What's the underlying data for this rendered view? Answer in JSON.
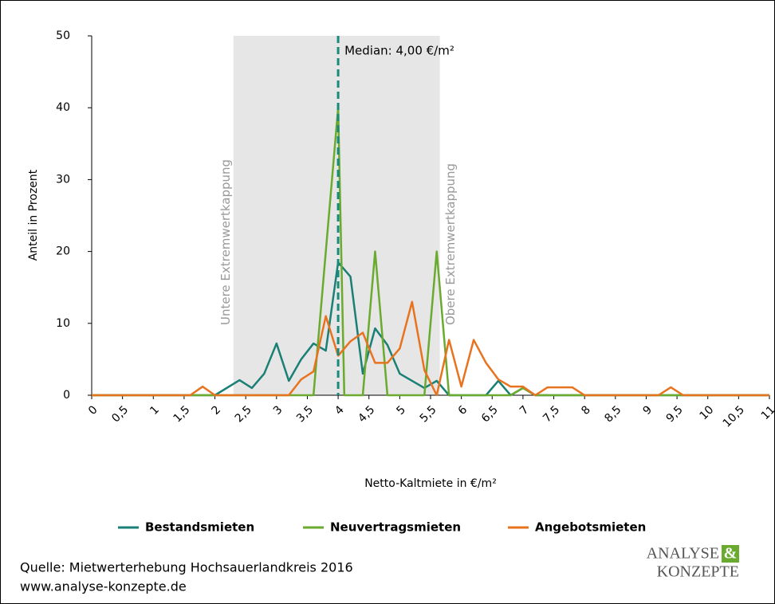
{
  "chart_data": {
    "type": "line",
    "xlabel": "Netto-Kaltmiete in €/m²",
    "ylabel": "Anteil in Prozent",
    "xlim": [
      0,
      11
    ],
    "ylim": [
      0,
      50
    ],
    "xticks": [
      0,
      {
        "value": 0.5,
        "label": "0,5"
      },
      1,
      {
        "value": 1.5,
        "label": "1,5"
      },
      2,
      {
        "value": 2.5,
        "label": "2,5"
      },
      3,
      {
        "value": 3.5,
        "label": "3,5"
      },
      4,
      {
        "value": 4.5,
        "label": "4,5"
      },
      5,
      {
        "value": 5.5,
        "label": "5,5"
      },
      6,
      {
        "value": 6.5,
        "label": "6,5"
      },
      7,
      {
        "value": 7.5,
        "label": "7,5"
      },
      8,
      {
        "value": 8.5,
        "label": "8,5"
      },
      9,
      {
        "value": 9.5,
        "label": "9,5"
      },
      10,
      {
        "value": 10.5,
        "label": "10,5"
      },
      11
    ],
    "yticks": [
      0,
      10,
      20,
      30,
      40,
      50
    ],
    "grid": false,
    "legend": "bottom",
    "band": {
      "from": 2.3,
      "to": 5.65,
      "color": "#e6e6e6"
    },
    "annotations": [
      {
        "text": "Untere Extremwertkappung",
        "x": 2.3,
        "side": "left"
      },
      {
        "text": "Obere Extremwertkappung",
        "x": 5.65,
        "side": "right"
      }
    ],
    "median": {
      "value": 4,
      "label": "Median: 4,00 €/m²",
      "color": "#1a8a7a"
    },
    "series": [
      {
        "name": "Bestandsmieten",
        "color": "#1a8075",
        "x": [
          0,
          2.0,
          2.4,
          2.6,
          2.8,
          3.0,
          3.2,
          3.4,
          3.6,
          3.8,
          4.0,
          4.2,
          4.4,
          4.6,
          4.8,
          5.0,
          5.4,
          5.6,
          5.8,
          6.4,
          6.6,
          6.8,
          7.0,
          7.2,
          11
        ],
        "values": [
          0,
          0,
          2.1,
          1,
          3,
          7.2,
          2,
          5,
          7.2,
          6.2,
          18.5,
          16.5,
          3,
          9.3,
          7,
          3,
          1,
          2,
          0,
          0,
          2,
          0,
          1,
          0,
          0
        ]
      },
      {
        "name": "Neuvertragsmieten",
        "color": "#6aaa2e",
        "x": [
          0,
          3.6,
          4.0,
          4.1,
          4.4,
          4.6,
          4.8,
          5.4,
          5.6,
          5.8,
          6.8,
          7.0,
          7.2,
          11
        ],
        "values": [
          0,
          0,
          40,
          0,
          0,
          20,
          0,
          0,
          20,
          0,
          0,
          1,
          0,
          0
        ]
      },
      {
        "name": "Angebotsmieten",
        "color": "#e8731f",
        "x": [
          0,
          1.6,
          1.8,
          2.0,
          3.2,
          3.4,
          3.6,
          3.8,
          4.0,
          4.2,
          4.4,
          4.6,
          4.8,
          5.0,
          5.2,
          5.4,
          5.6,
          5.8,
          6.0,
          6.2,
          6.4,
          6.6,
          6.8,
          7.0,
          7.2,
          7.4,
          7.8,
          8.0,
          9.2,
          9.4,
          9.6,
          11
        ],
        "values": [
          0,
          0,
          1.2,
          0,
          0,
          2.2,
          3.3,
          11,
          5.5,
          7.5,
          8.7,
          4.5,
          4.5,
          6.5,
          13,
          3.5,
          0,
          7.7,
          1.2,
          7.7,
          4.5,
          2.2,
          1.2,
          1.2,
          0,
          1.1,
          1.1,
          0,
          0,
          1.1,
          0,
          0
        ]
      }
    ]
  },
  "footer": {
    "source": "Quelle: Mietwerterhebung Hochsauerlandkreis 2016",
    "url": "www.analyse-konzepte.de",
    "logo_top": "ANALYSE",
    "logo_amp": "&",
    "logo_bottom": "KONZEPTE"
  }
}
